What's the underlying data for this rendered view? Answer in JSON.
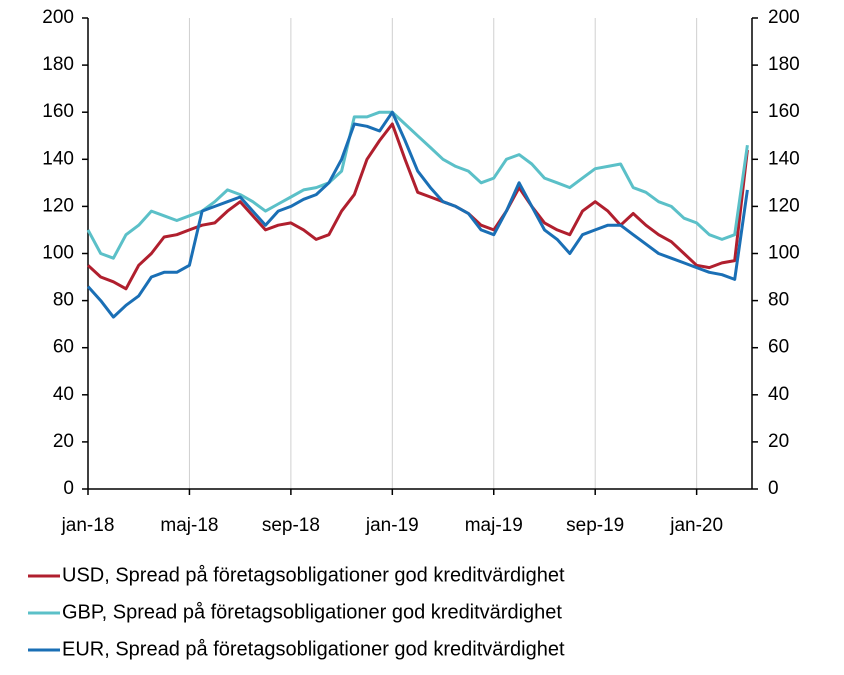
{
  "chart_data": {
    "type": "line",
    "categories": [
      "jan-18",
      null,
      null,
      null,
      null,
      null,
      null,
      null,
      "maj-18",
      null,
      null,
      null,
      null,
      null,
      null,
      null,
      "sep-18",
      null,
      null,
      null,
      null,
      null,
      null,
      null,
      "jan-19",
      null,
      null,
      null,
      null,
      null,
      null,
      null,
      "maj-19",
      null,
      null,
      null,
      null,
      null,
      null,
      null,
      "sep-19",
      null,
      null,
      null,
      null,
      null,
      null,
      null,
      "jan-20",
      null,
      null,
      null,
      null
    ],
    "series": [
      {
        "name": "USD, Spread på företagsobligationer god kreditvärdighet",
        "color": "#b01f2e",
        "values": [
          95,
          90,
          88,
          85,
          95,
          100,
          107,
          108,
          110,
          112,
          113,
          118,
          122,
          116,
          110,
          112,
          113,
          110,
          106,
          108,
          118,
          125,
          140,
          148,
          155,
          140,
          126,
          124,
          122,
          120,
          117,
          112,
          110,
          118,
          128,
          120,
          113,
          110,
          108,
          118,
          122,
          118,
          112,
          117,
          112,
          108,
          105,
          100,
          95,
          94,
          96,
          97,
          144
        ]
      },
      {
        "name": "GBP, Spread på företagsobligationer god kreditvärdighet",
        "color": "#5bc0c8",
        "values": [
          110,
          100,
          98,
          108,
          112,
          118,
          116,
          114,
          116,
          118,
          122,
          127,
          125,
          122,
          118,
          121,
          124,
          127,
          128,
          130,
          135,
          158,
          158,
          160,
          160,
          155,
          150,
          145,
          140,
          137,
          135,
          130,
          132,
          140,
          142,
          138,
          132,
          130,
          128,
          132,
          136,
          137,
          138,
          128,
          126,
          122,
          120,
          115,
          113,
          108,
          106,
          108,
          146
        ]
      },
      {
        "name": "EUR, Spread på företagsobligationer god kreditvärdighet",
        "color": "#1a6fb5",
        "values": [
          86,
          80,
          73,
          78,
          82,
          90,
          92,
          92,
          95,
          118,
          120,
          122,
          124,
          118,
          112,
          118,
          120,
          123,
          125,
          130,
          140,
          155,
          154,
          152,
          160,
          148,
          135,
          128,
          122,
          120,
          117,
          110,
          108,
          118,
          130,
          120,
          110,
          106,
          100,
          108,
          110,
          112,
          112,
          108,
          104,
          100,
          98,
          96,
          94,
          92,
          91,
          89,
          127
        ]
      }
    ],
    "ylim": [
      0,
      200
    ],
    "yticks": [
      0,
      20,
      40,
      60,
      80,
      100,
      120,
      140,
      160,
      180,
      200
    ],
    "y2lim": [
      0,
      200
    ],
    "y2ticks": [
      0,
      20,
      40,
      60,
      80,
      100,
      120,
      140,
      160,
      180,
      200
    ],
    "grid": true
  }
}
